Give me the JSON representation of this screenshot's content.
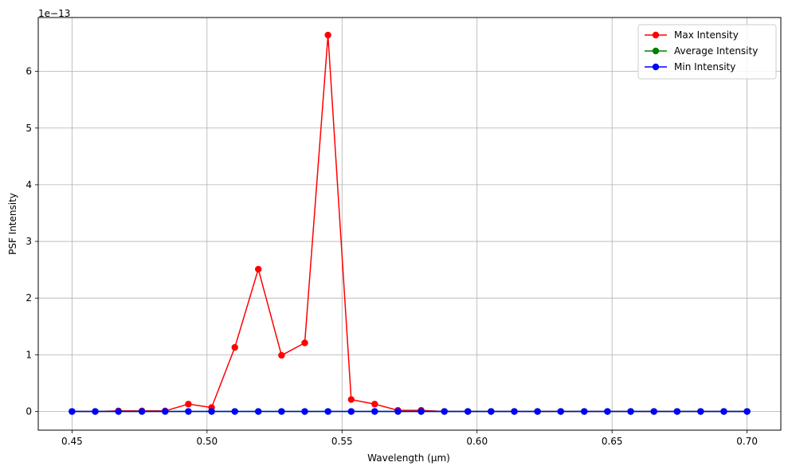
{
  "chart_data": {
    "type": "line",
    "title": "",
    "xlabel": "Wavelength (µm)",
    "ylabel": "PSF Intensity",
    "offset_label": "1e−13",
    "xlim": [
      0.4375,
      0.7125
    ],
    "ylim": [
      -0.33,
      6.95
    ],
    "x_ticks": [
      0.45,
      0.5,
      0.55,
      0.6,
      0.65,
      0.7
    ],
    "x_tick_labels": [
      "0.45",
      "0.50",
      "0.55",
      "0.60",
      "0.65",
      "0.70"
    ],
    "y_ticks": [
      0,
      1,
      2,
      3,
      4,
      5,
      6
    ],
    "y_tick_labels": [
      "0",
      "1",
      "2",
      "3",
      "4",
      "5",
      "6"
    ],
    "grid": true,
    "legend_position": "top-right",
    "x": [
      0.45,
      0.4586,
      0.4672,
      0.4759,
      0.4845,
      0.4931,
      0.5017,
      0.5103,
      0.519,
      0.5276,
      0.5362,
      0.5448,
      0.5534,
      0.5621,
      0.5707,
      0.5793,
      0.5879,
      0.5966,
      0.6052,
      0.6138,
      0.6224,
      0.631,
      0.6397,
      0.6483,
      0.6569,
      0.6655,
      0.6741,
      0.6828,
      0.6914,
      0.7
    ],
    "series": [
      {
        "name": "Max Intensity",
        "color": "#ff0000",
        "values": [
          0.0,
          0.0,
          0.01,
          0.01,
          0.01,
          0.13,
          0.07,
          1.13,
          2.51,
          0.99,
          1.21,
          6.64,
          0.21,
          0.13,
          0.02,
          0.02,
          0.0,
          0.0,
          0.0,
          0.0,
          0.0,
          0.0,
          0.0,
          0.0,
          0.0,
          0.0,
          0.0,
          0.0,
          0.0,
          0.0
        ]
      },
      {
        "name": "Average Intensity",
        "color": "#008000",
        "values": [
          0,
          0,
          0,
          0,
          0,
          0,
          0,
          0,
          0,
          0,
          0,
          0,
          0,
          0,
          0,
          0,
          0,
          0,
          0,
          0,
          0,
          0,
          0,
          0,
          0,
          0,
          0,
          0,
          0,
          0
        ]
      },
      {
        "name": "Min Intensity",
        "color": "#0000ff",
        "values": [
          0,
          0,
          0,
          0,
          0,
          0,
          0,
          0,
          0,
          0,
          0,
          0,
          0,
          0,
          0,
          0,
          0,
          0,
          0,
          0,
          0,
          0,
          0,
          0,
          0,
          0,
          0,
          0,
          0,
          0
        ]
      }
    ]
  }
}
